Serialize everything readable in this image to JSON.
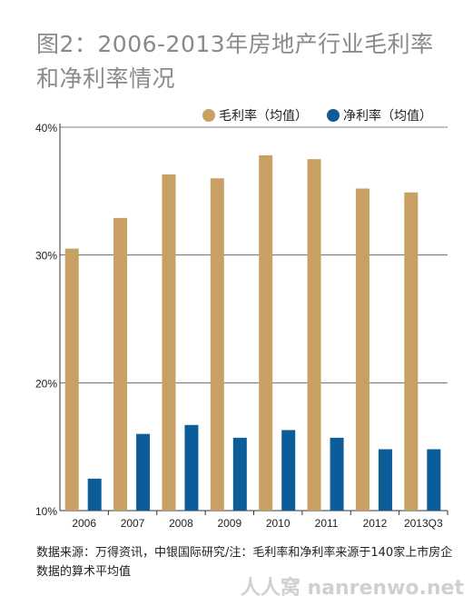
{
  "chart_data": {
    "type": "bar",
    "title": "图2：2006-2013年房地产行业毛利率和净利率情况",
    "categories": [
      "2006",
      "2007",
      "2008",
      "2009",
      "2010",
      "2011",
      "2012",
      "2013Q3"
    ],
    "series": [
      {
        "name": "毛利率（均值）",
        "color": "#c9a063",
        "values": [
          30.5,
          32.9,
          36.3,
          36.0,
          37.8,
          37.5,
          35.2,
          34.9
        ]
      },
      {
        "name": "净利率（均值）",
        "color": "#0d5c9a",
        "values": [
          12.5,
          16.0,
          16.7,
          15.7,
          16.3,
          15.7,
          14.8,
          14.8
        ]
      }
    ],
    "y_ticks": [
      "10%",
      "20%",
      "30%",
      "40%"
    ],
    "ylim": [
      10,
      40
    ],
    "grid": true,
    "legend_position": "top-right"
  },
  "source_note": "数据来源：万得资讯，中银国际研究/注：毛利率和净利率来源于140家上市房企数据的算术平均值",
  "watermark": "人人窝 nanrenwo.net"
}
